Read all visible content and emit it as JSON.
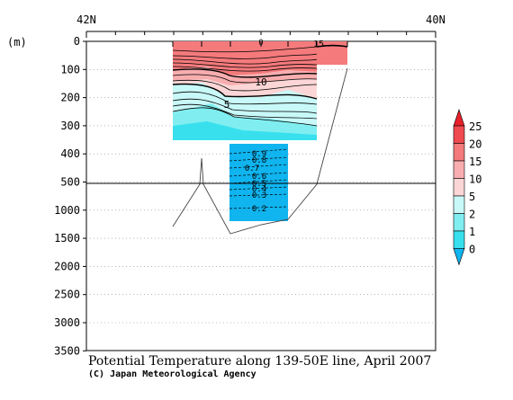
{
  "chart_data": {
    "type": "contour-section",
    "title": "Potential Temperature along 139-50E line, April 2007",
    "credit": "(C) Japan Meteorological Agency",
    "y_unit": "(m)",
    "x_top_labels": [
      "42N",
      "40N"
    ],
    "y_ticks": [
      "0",
      "100",
      "200",
      "300",
      "400",
      "500",
      "1000",
      "1500",
      "2000",
      "2500",
      "3000",
      "3500"
    ],
    "contour_labels": [
      "0",
      "15",
      "10",
      "5",
      "0.9",
      "0.8",
      "0.7",
      "0.6",
      "0.5",
      "0.4",
      "0.3",
      "0.2"
    ],
    "colorbar": {
      "levels": [
        "25",
        "20",
        "15",
        "10",
        "5",
        "2",
        "1",
        "0"
      ],
      "colors": [
        "#e8202a",
        "#ef4a50",
        "#f47a7c",
        "#f8adaf",
        "#fcd6d6",
        "#c8f8f8",
        "#80eef0",
        "#38e0ee",
        "#10b4ee"
      ]
    },
    "grid": "dotted-horizontal"
  }
}
